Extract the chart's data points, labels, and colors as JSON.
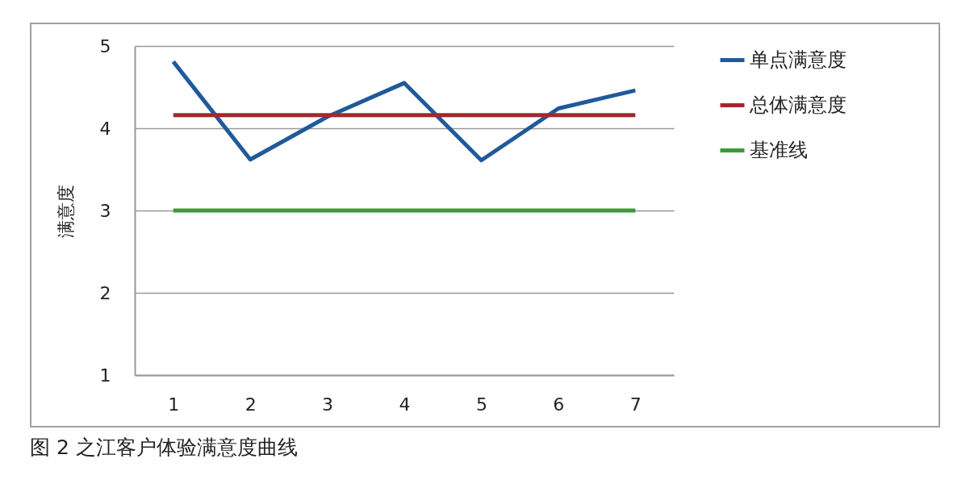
{
  "chart_data": {
    "type": "line",
    "ylabel": "满意度",
    "categories": [
      "1",
      "2",
      "3",
      "4",
      "5",
      "6",
      "7"
    ],
    "series": [
      {
        "name": "单点满意度",
        "color": "#1f5a9a",
        "values": [
          4.81,
          3.62,
          4.14,
          4.55,
          3.61,
          4.24,
          4.46
        ]
      },
      {
        "name": "总体满意度",
        "color": "#a3282e",
        "values": [
          4.16,
          4.16,
          4.16,
          4.16,
          4.16,
          4.16,
          4.16
        ]
      },
      {
        "name": "基准线",
        "color": "#3a9a3a",
        "values": [
          3,
          3,
          3,
          3,
          3,
          3,
          3
        ]
      }
    ],
    "ylim": [
      1,
      5
    ],
    "yticks": [
      1,
      2,
      3,
      4,
      5
    ],
    "grid": "y",
    "legend": "right",
    "marker": "none",
    "line_style": "solid",
    "annotations": [
      "图 2 之江客户体验满意度曲线"
    ]
  }
}
